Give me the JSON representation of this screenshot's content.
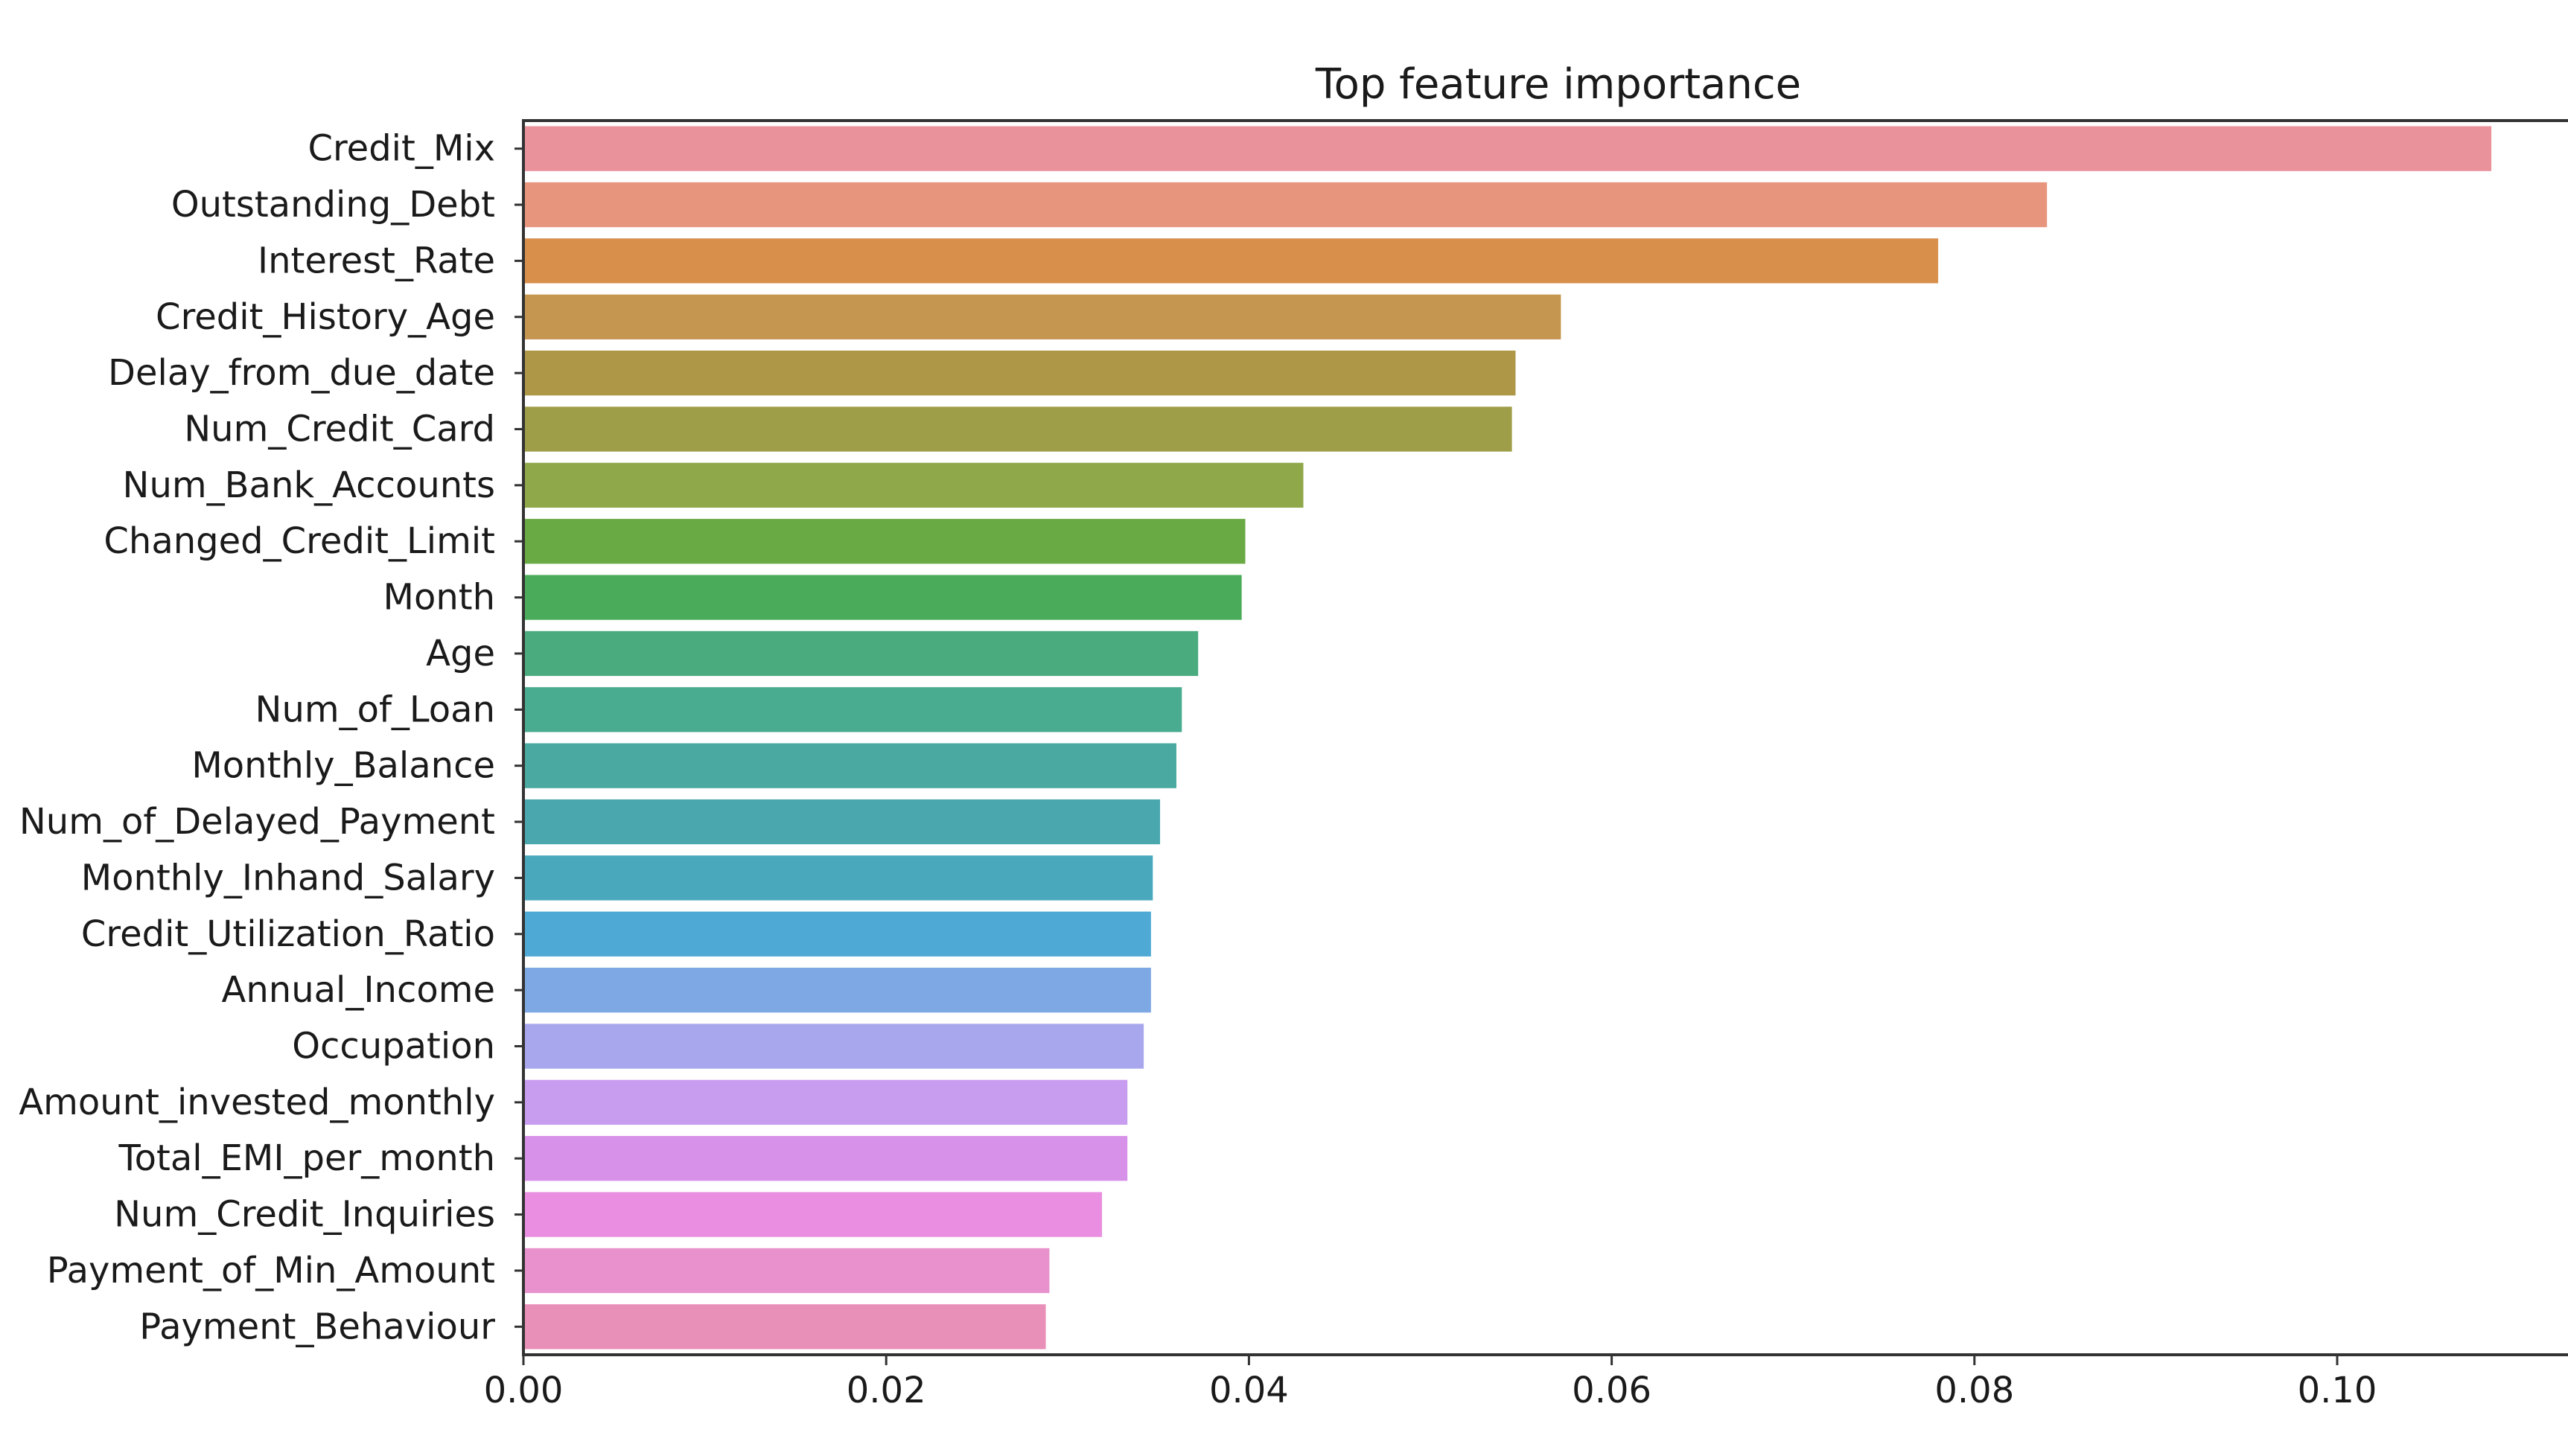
{
  "chart_data": {
    "type": "bar",
    "orientation": "horizontal",
    "title": "Top feature importance",
    "xlabel": "",
    "ylabel": "",
    "xlim": [
      0,
      0.112
    ],
    "xticks": [
      0.0,
      0.02,
      0.04,
      0.06,
      0.08,
      0.1
    ],
    "xtick_labels": [
      "0.00",
      "0.02",
      "0.04",
      "0.06",
      "0.08",
      "0.10"
    ],
    "grid": false,
    "categories": [
      "Credit_Mix",
      "Outstanding_Debt",
      "Interest_Rate",
      "Credit_History_Age",
      "Delay_from_due_date",
      "Num_Credit_Card",
      "Num_Bank_Accounts",
      "Changed_Credit_Limit",
      "Month",
      "Age",
      "Num_of_Loan",
      "Monthly_Balance",
      "Num_of_Delayed_Payment",
      "Monthly_Inhand_Salary",
      "Credit_Utilization_Ratio",
      "Annual_Income",
      "Occupation",
      "Amount_invested_monthly",
      "Total_EMI_per_month",
      "Num_Credit_Inquiries",
      "Payment_of_Min_Amount",
      "Payment_Behaviour"
    ],
    "values": [
      0.1085,
      0.084,
      0.078,
      0.0572,
      0.0547,
      0.0545,
      0.043,
      0.0398,
      0.0396,
      0.0372,
      0.0363,
      0.036,
      0.0351,
      0.0347,
      0.0346,
      0.0346,
      0.0342,
      0.0333,
      0.0333,
      0.0319,
      0.029,
      0.0288
    ],
    "colors": [
      "#e9929c",
      "#e8957e",
      "#d88f4c",
      "#c49650",
      "#ae9848",
      "#9e9e48",
      "#8ea84a",
      "#6aaa45",
      "#4aac5a",
      "#4aab7e",
      "#49ab8f",
      "#4aa9a0",
      "#4aa7ae",
      "#4aa8bc",
      "#4eaad4",
      "#7ea8e3",
      "#a8a7ee",
      "#c89cef",
      "#d891e9",
      "#e98ee0",
      "#e891cc",
      "#e990b8"
    ]
  }
}
